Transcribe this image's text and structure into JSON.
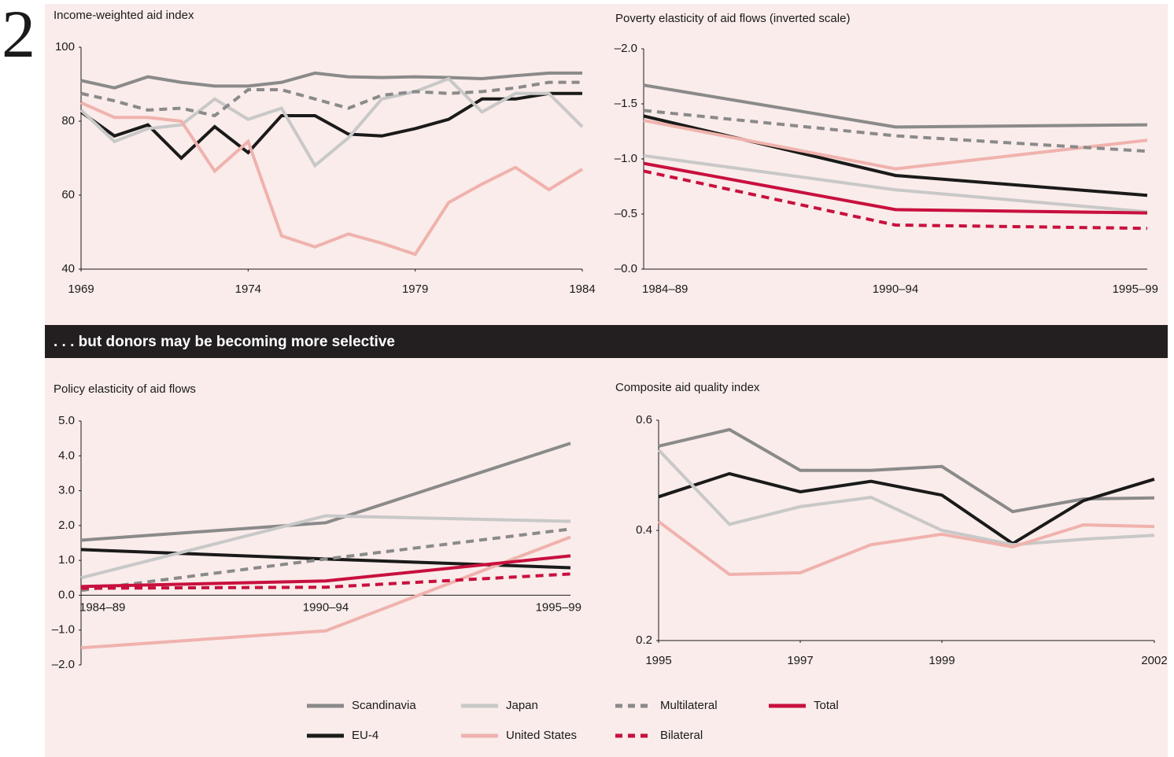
{
  "figure_number": "2",
  "banner": ". . . but donors may be becoming more selective",
  "chart_data": [
    {
      "type": "line",
      "title": "Income-weighted aid index",
      "x": [
        1969,
        1970,
        1971,
        1972,
        1973,
        1974,
        1975,
        1976,
        1977,
        1978,
        1979,
        1980,
        1981,
        1982,
        1983,
        1984
      ],
      "xlim": [
        1969,
        1984
      ],
      "xticks": [
        1969,
        1974,
        1979,
        1984
      ],
      "ylim": [
        40,
        100
      ],
      "yticks": [
        40,
        60,
        80,
        100
      ],
      "grid": false,
      "series": [
        {
          "name": "Scandinavia",
          "color": "#8a8a8a",
          "style": "solid",
          "values": [
            91,
            89,
            92,
            90.5,
            89.5,
            89.5,
            90.5,
            93,
            92,
            91.8,
            92,
            91.8,
            91.5,
            92.3,
            93,
            93
          ]
        },
        {
          "name": "EU-4",
          "color": "#1a1a1a",
          "style": "solid",
          "values": [
            82.5,
            76,
            79,
            70,
            78.5,
            71.5,
            81.5,
            81.5,
            76.5,
            76,
            78,
            80.5,
            86,
            86,
            87.5,
            87.5
          ]
        },
        {
          "name": "Japan",
          "color": "#c8c8c8",
          "style": "solid",
          "values": [
            83,
            74.5,
            78,
            79,
            86,
            80.5,
            83.5,
            68,
            75.5,
            86,
            88,
            91.5,
            82.5,
            87.5,
            87.5,
            78.5
          ]
        },
        {
          "name": "United States",
          "color": "#f0b2ad",
          "style": "solid",
          "values": [
            85,
            81,
            81,
            80,
            66.5,
            74.5,
            49,
            46,
            49.5,
            47,
            44,
            58,
            63,
            67.5,
            61.5,
            67
          ]
        },
        {
          "name": "Multilateral",
          "color": "#8a8a8a",
          "style": "dashed",
          "values": [
            87.5,
            85.5,
            83,
            83.5,
            81.5,
            88.5,
            88.5,
            86,
            83.5,
            87,
            88,
            87.5,
            88,
            89,
            90.5,
            90.5
          ]
        }
      ]
    },
    {
      "type": "line",
      "title": "Poverty elasticity of aid flows (inverted scale)",
      "categories": [
        "1984–89",
        "1990–94",
        "1995–99"
      ],
      "ylim": [
        0,
        -2.0
      ],
      "yticks": [
        {
          "value": 0,
          "label": "–0.0"
        },
        {
          "value": -0.5,
          "label": "–0.5"
        },
        {
          "value": -1.0,
          "label": "–1.0"
        },
        {
          "value": -1.5,
          "label": "–1.5"
        },
        {
          "value": -2.0,
          "label": "–2.0"
        }
      ],
      "grid": false,
      "series": [
        {
          "name": "Scandinavia",
          "color": "#8a8a8a",
          "style": "solid",
          "values": [
            -1.67,
            -1.29,
            -1.31
          ]
        },
        {
          "name": "EU-4",
          "color": "#1a1a1a",
          "style": "solid",
          "values": [
            -1.39,
            -0.85,
            -0.67
          ]
        },
        {
          "name": "Japan",
          "color": "#c8c8c8",
          "style": "solid",
          "values": [
            -1.03,
            -0.72,
            -0.52
          ]
        },
        {
          "name": "United States",
          "color": "#f0b2ad",
          "style": "solid",
          "values": [
            -1.35,
            -0.91,
            -1.17
          ]
        },
        {
          "name": "Multilateral",
          "color": "#8a8a8a",
          "style": "dashed",
          "values": [
            -1.44,
            -1.21,
            -1.07
          ]
        },
        {
          "name": "Bilateral",
          "color": "#c8103e",
          "style": "dashed",
          "values": [
            -0.89,
            -0.4,
            -0.37
          ]
        },
        {
          "name": "Total",
          "color": "#c8103e",
          "style": "solid",
          "values": [
            -0.96,
            -0.54,
            -0.51
          ]
        }
      ]
    },
    {
      "type": "line",
      "title": "Policy elasticity of aid flows",
      "categories": [
        "1984–89",
        "1990–94",
        "1995–99"
      ],
      "ylim": [
        -2.0,
        5.0
      ],
      "yticks": [
        {
          "value": -2.0,
          "label": "–2.0"
        },
        {
          "value": -1.0,
          "label": "–1.0"
        },
        {
          "value": 0,
          "label": "0.0"
        },
        {
          "value": 1.0,
          "label": "1.0"
        },
        {
          "value": 2.0,
          "label": "2.0"
        },
        {
          "value": 3.0,
          "label": "3.0"
        },
        {
          "value": 4.0,
          "label": "4.0"
        },
        {
          "value": 5.0,
          "label": "5.0"
        }
      ],
      "grid": false,
      "series": [
        {
          "name": "Scandinavia",
          "color": "#8a8a8a",
          "style": "solid",
          "values": [
            1.58,
            2.08,
            4.36
          ]
        },
        {
          "name": "EU-4",
          "color": "#1a1a1a",
          "style": "solid",
          "values": [
            1.31,
            1.04,
            0.79
          ]
        },
        {
          "name": "Japan",
          "color": "#c8c8c8",
          "style": "solid",
          "values": [
            0.5,
            2.28,
            2.12
          ]
        },
        {
          "name": "United States",
          "color": "#f0b2ad",
          "style": "solid",
          "values": [
            -1.51,
            -1.02,
            1.67
          ]
        },
        {
          "name": "Multilateral",
          "color": "#8a8a8a",
          "style": "dashed",
          "values": [
            0.14,
            1.04,
            1.9
          ]
        },
        {
          "name": "Bilateral",
          "color": "#c8103e",
          "style": "dashed",
          "values": [
            0.2,
            0.23,
            0.61
          ]
        },
        {
          "name": "Total",
          "color": "#c8103e",
          "style": "solid",
          "values": [
            0.25,
            0.41,
            1.13
          ]
        }
      ]
    },
    {
      "type": "line",
      "title": "Composite aid quality index",
      "x": [
        1995,
        1996,
        1997,
        1998,
        1999,
        2000,
        2001,
        2002
      ],
      "xlim": [
        1995,
        2002
      ],
      "xticks": [
        1995,
        1997,
        1999,
        2002
      ],
      "ylim": [
        0.2,
        0.6
      ],
      "yticks": [
        0.2,
        0.4,
        0.6
      ],
      "grid": false,
      "series": [
        {
          "name": "Scandinavia",
          "color": "#8a8a8a",
          "style": "solid",
          "values": [
            0.553,
            0.583,
            0.509,
            0.509,
            0.516,
            0.434,
            0.457,
            0.459
          ]
        },
        {
          "name": "EU-4",
          "color": "#1a1a1a",
          "style": "solid",
          "values": [
            0.461,
            0.503,
            0.47,
            0.489,
            0.464,
            0.376,
            0.454,
            0.493
          ]
        },
        {
          "name": "Japan",
          "color": "#c8c8c8",
          "style": "solid",
          "values": [
            0.546,
            0.411,
            0.443,
            0.46,
            0.4,
            0.374,
            0.384,
            0.391
          ]
        },
        {
          "name": "United States",
          "color": "#f0b2ad",
          "style": "solid",
          "values": [
            0.416,
            0.32,
            0.323,
            0.374,
            0.393,
            0.37,
            0.41,
            0.407
          ]
        }
      ]
    }
  ]
}
